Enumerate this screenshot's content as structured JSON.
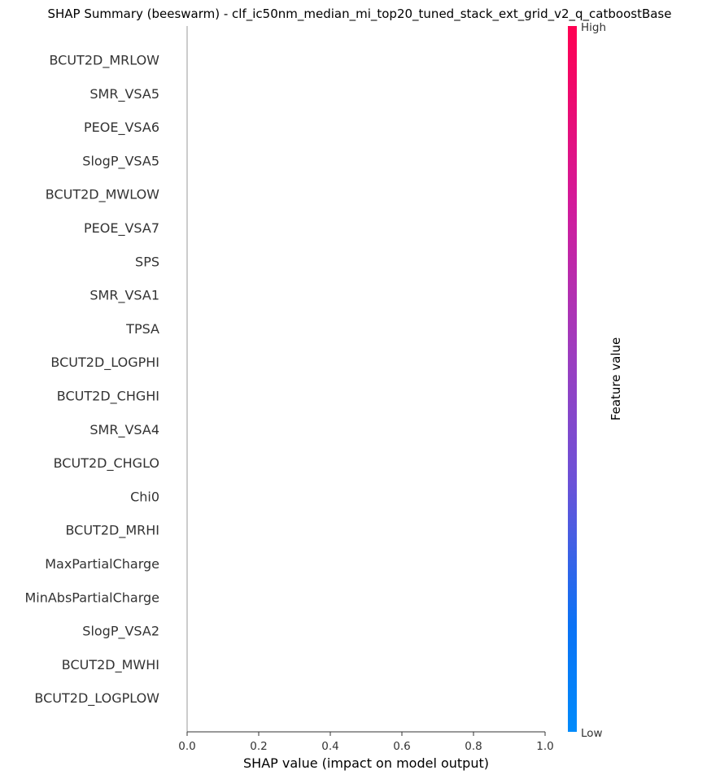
{
  "chart_data": {
    "type": "scatter",
    "title": "SHAP Summary (beeswarm) - clf_ic50nm_median_mi_top20_tuned_stack_ext_grid_v2_q_catboostBase",
    "xlabel": "SHAP value (impact on model output)",
    "ylabel": "",
    "xlim": [
      0,
      1
    ],
    "xticks": [
      0.0,
      0.2,
      0.4,
      0.6,
      0.8,
      1.0
    ],
    "xtick_labels": [
      "0.0",
      "0.2",
      "0.4",
      "0.6",
      "0.8",
      "1.0"
    ],
    "features": [
      "BCUT2D_MRLOW",
      "SMR_VSA5",
      "PEOE_VSA6",
      "SlogP_VSA5",
      "BCUT2D_MWLOW",
      "PEOE_VSA7",
      "SPS",
      "SMR_VSA1",
      "TPSA",
      "BCUT2D_LOGPHI",
      "BCUT2D_CHGHI",
      "SMR_VSA4",
      "BCUT2D_CHGLO",
      "Chi0",
      "BCUT2D_MRHI",
      "MaxPartialCharge",
      "MinAbsPartialCharge",
      "SlogP_VSA2",
      "BCUT2D_MWHI",
      "BCUT2D_LOGPLOW"
    ],
    "points": [],
    "colorbar": {
      "label": "Feature value",
      "high_label": "High",
      "low_label": "Low",
      "high_color": "#ff0051",
      "low_color": "#008bfb"
    },
    "grid": false,
    "legend": "none"
  }
}
